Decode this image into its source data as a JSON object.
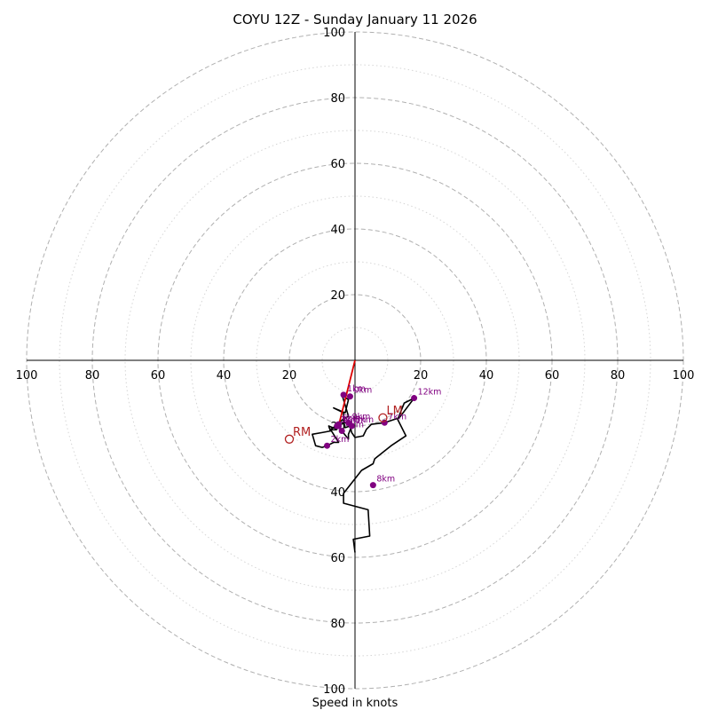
{
  "chart_data": {
    "type": "hodograph",
    "title": "COYU 12Z - Sunday January 11 2026",
    "xlabel": "Speed in knots",
    "ring_values": [
      20,
      40,
      60,
      80,
      100
    ],
    "axis_max": 100,
    "axis_ticks": [
      {
        "label": "100",
        "value": 100
      },
      {
        "label": "80",
        "value": 80
      },
      {
        "label": "60",
        "value": 60
      },
      {
        "label": "40",
        "value": 40
      },
      {
        "label": "20",
        "value": 20
      }
    ],
    "hodograph_trace": [
      [
        0,
        -58.5
      ],
      [
        -0.5,
        -54.5
      ],
      [
        4.5,
        -53.5
      ],
      [
        4,
        -45.5
      ],
      [
        -3.5,
        -43.5
      ],
      [
        -3.5,
        -40.5
      ],
      [
        2,
        -33.5
      ],
      [
        5.5,
        -31.5
      ],
      [
        6,
        -30
      ],
      [
        11,
        -26
      ],
      [
        15.5,
        -23
      ],
      [
        13,
        -18
      ],
      [
        15,
        -13
      ],
      [
        18,
        -11.5
      ],
      [
        13.5,
        -17.5
      ],
      [
        9,
        -19
      ],
      [
        5,
        -19.5
      ],
      [
        3.5,
        -21
      ],
      [
        2.5,
        -23
      ],
      [
        0,
        -23.5
      ],
      [
        -1,
        -22
      ],
      [
        -1.5,
        -20
      ],
      [
        -3,
        -20.5
      ],
      [
        -3.5,
        -18.5
      ],
      [
        -3.5,
        -16
      ],
      [
        -6.5,
        -14.5
      ],
      [
        -3,
        -16
      ],
      [
        -2,
        -12
      ],
      [
        -4,
        -10.5
      ],
      [
        -3.5,
        -12
      ],
      [
        -2,
        -17
      ],
      [
        -6,
        -19.5
      ],
      [
        -5.5,
        -21
      ],
      [
        -8,
        -20
      ],
      [
        -7.5,
        -21.5
      ],
      [
        -10,
        -22
      ],
      [
        -13,
        -22.5
      ],
      [
        -12,
        -26
      ],
      [
        -10,
        -26.5
      ],
      [
        -8.5,
        -26
      ],
      [
        -6.5,
        -25
      ],
      [
        -5,
        -25
      ],
      [
        -7.5,
        -21
      ],
      [
        -5,
        -19.5
      ],
      [
        -2.5,
        -19
      ],
      [
        -1,
        -20
      ],
      [
        -2,
        -22.5
      ],
      [
        -2,
        -24
      ],
      [
        -4,
        -21.5
      ],
      [
        -5,
        -20
      ]
    ],
    "height_markers": [
      {
        "label": "0km",
        "u": -1.5,
        "v": -11
      },
      {
        "label": "1km",
        "u": -3.5,
        "v": -10.5
      },
      {
        "label": "2km",
        "u": -8.5,
        "v": -26
      },
      {
        "label": "3km",
        "u": -5.5,
        "v": -20
      },
      {
        "label": "4km",
        "u": -4,
        "v": -21.5
      },
      {
        "label": "5km",
        "u": -1,
        "v": -20
      },
      {
        "label": "6km",
        "u": -5,
        "v": -19.5
      },
      {
        "label": "7km",
        "u": 9,
        "v": -19
      },
      {
        "label": "8km",
        "u": 5.5,
        "v": -38
      },
      {
        "label": "9km",
        "u": -2,
        "v": -19
      },
      {
        "label": "10km",
        "u": -5,
        "v": -20
      },
      {
        "label": "12km",
        "u": 18,
        "v": -11.5
      }
    ],
    "storm_motion": [
      {
        "label": "RM",
        "u": -20,
        "v": -24
      },
      {
        "label": "LM",
        "u": 8.5,
        "v": -17.5
      }
    ],
    "mean_wind_vector": {
      "u": -5,
      "v": -20
    },
    "colors": {
      "trace": "#000000",
      "markers": "#800080",
      "storm_motion": "#b22222",
      "mean_vector": "#dd0000",
      "major_ring": "#b0b0b0",
      "minor_ring": "#d5d5d5",
      "axes": "#000000"
    }
  }
}
